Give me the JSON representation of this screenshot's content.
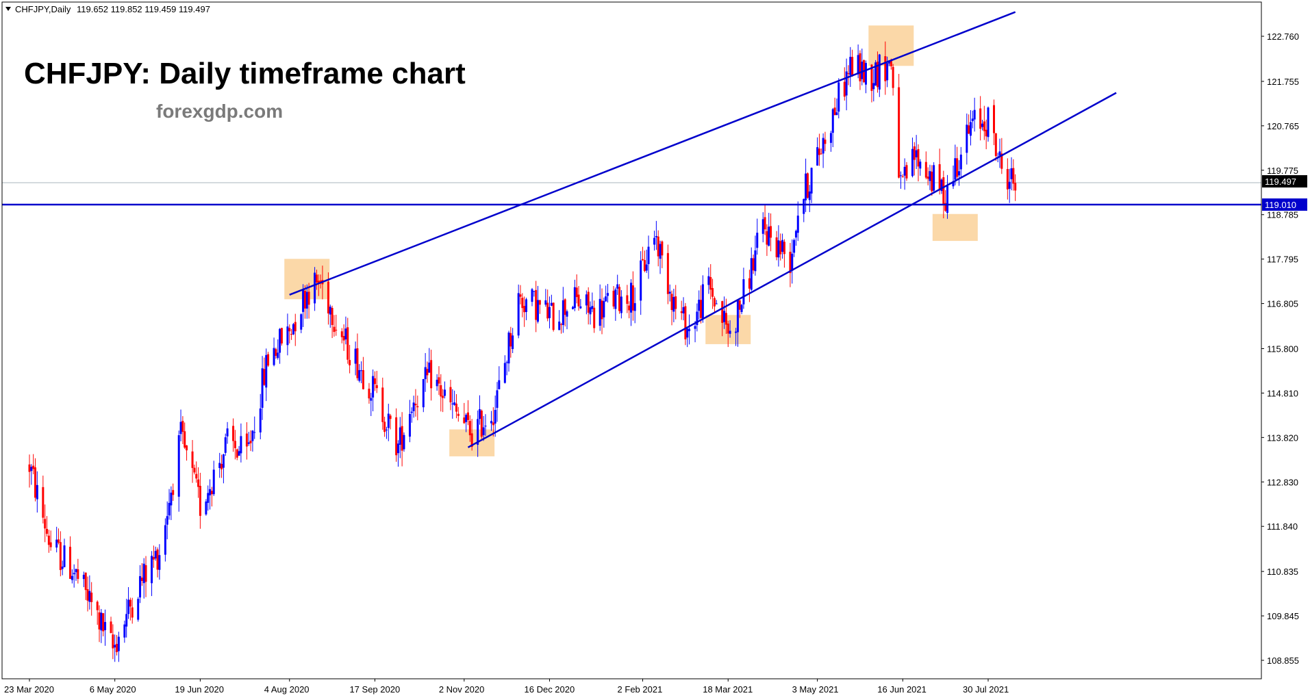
{
  "ticker": {
    "symbol_label": "CHFJPY,Daily",
    "ohlc_label": "119.652 119.852 119.459 119.497"
  },
  "headline": "CHFJPY: Daily timeframe chart",
  "watermark": "forexgdp.com",
  "colors": {
    "bull": "#0000ff",
    "bear": "#ff0000",
    "trendline": "#0000cc",
    "highlight": "#fbd8a8",
    "current_price_line": "#a8b4bc",
    "axis": "#000000"
  },
  "chart_data": {
    "type": "candlestick",
    "symbol": "CHFJPY",
    "timeframe": "Daily",
    "y_ticks": [
      "122.760",
      "121.755",
      "120.765",
      "119.775",
      "118.785",
      "117.795",
      "116.805",
      "115.800",
      "114.810",
      "113.820",
      "112.830",
      "111.840",
      "110.835",
      "109.845",
      "108.855"
    ],
    "x_ticks": [
      "23 Mar 2020",
      "6 May 2020",
      "19 Jun 2020",
      "4 Aug 2020",
      "17 Sep 2020",
      "2 Nov 2020",
      "16 Dec 2020",
      "2 Feb 2021",
      "18 Mar 2021",
      "3 May 2021",
      "16 Jun 2021",
      "30 Jul 2021"
    ],
    "ylim": [
      108.5,
      123.4
    ],
    "current_price": "119.497",
    "horizontal_level": "119.010",
    "path": [
      [
        "2020-03-23",
        113.2
      ],
      [
        "2020-04-03",
        111.4
      ],
      [
        "2020-04-14",
        110.9
      ],
      [
        "2020-04-24",
        110.1
      ],
      [
        "2020-05-05",
        109.1
      ],
      [
        "2020-05-18",
        110.5
      ],
      [
        "2020-05-29",
        111.3
      ],
      [
        "2020-06-09",
        113.8
      ],
      [
        "2020-06-19",
        112.3
      ],
      [
        "2020-07-03",
        113.7
      ],
      [
        "2020-07-13",
        113.4
      ],
      [
        "2020-07-24",
        115.6
      ],
      [
        "2020-08-04",
        116.2
      ],
      [
        "2020-08-13",
        117.1
      ],
      [
        "2020-08-20",
        117.3
      ],
      [
        "2020-09-01",
        116.0
      ],
      [
        "2020-09-16",
        114.9
      ],
      [
        "2020-09-29",
        113.6
      ],
      [
        "2020-10-06",
        114.6
      ],
      [
        "2020-10-16",
        115.2
      ],
      [
        "2020-10-26",
        114.5
      ],
      [
        "2020-11-06",
        113.9
      ],
      [
        "2020-11-18",
        114.5
      ],
      [
        "2020-11-30",
        116.9
      ],
      [
        "2020-12-08",
        116.8
      ],
      [
        "2020-12-18",
        116.5
      ],
      [
        "2020-12-28",
        116.9
      ],
      [
        "2021-01-08",
        116.6
      ],
      [
        "2021-01-18",
        116.9
      ],
      [
        "2021-01-29",
        117.0
      ],
      [
        "2021-02-08",
        118.4
      ],
      [
        "2021-02-19",
        116.7
      ],
      [
        "2021-02-26",
        116.2
      ],
      [
        "2021-03-08",
        117.2
      ],
      [
        "2021-03-19",
        116.1
      ],
      [
        "2021-03-26",
        117.0
      ],
      [
        "2021-04-05",
        118.5
      ],
      [
        "2021-04-19",
        117.8
      ],
      [
        "2021-04-23",
        118.9
      ],
      [
        "2021-04-30",
        119.7
      ],
      [
        "2021-05-10",
        120.9
      ],
      [
        "2021-05-20",
        122.1
      ],
      [
        "2021-05-31",
        121.9
      ],
      [
        "2021-06-10",
        122.2
      ],
      [
        "2021-06-15",
        119.3
      ],
      [
        "2021-06-22",
        120.1
      ],
      [
        "2021-07-01",
        119.6
      ],
      [
        "2021-07-08",
        119.2
      ],
      [
        "2021-07-13",
        119.9
      ],
      [
        "2021-07-22",
        120.8
      ],
      [
        "2021-07-30",
        120.9
      ],
      [
        "2021-08-06",
        119.8
      ],
      [
        "2021-08-13",
        119.5
      ]
    ],
    "annotations": {
      "resistance_line": {
        "from": [
          "2020-08-04",
          117.0
        ],
        "to": [
          "2021-08-13",
          123.3
        ]
      },
      "support_line": {
        "from": [
          "2020-11-04",
          113.6
        ],
        "to": [
          "2021-10-04",
          121.5
        ]
      },
      "horizontal_level": 119.01,
      "highlight_boxes": [
        {
          "date": "2020-08-13",
          "low": 116.9,
          "high": 117.8
        },
        {
          "date": "2020-11-06",
          "low": 113.4,
          "high": 114.0
        },
        {
          "date": "2021-03-18",
          "low": 115.9,
          "high": 116.55
        },
        {
          "date": "2021-06-10",
          "low": 122.1,
          "high": 123.0
        },
        {
          "date": "2021-07-13",
          "low": 118.2,
          "high": 118.8
        }
      ]
    }
  }
}
